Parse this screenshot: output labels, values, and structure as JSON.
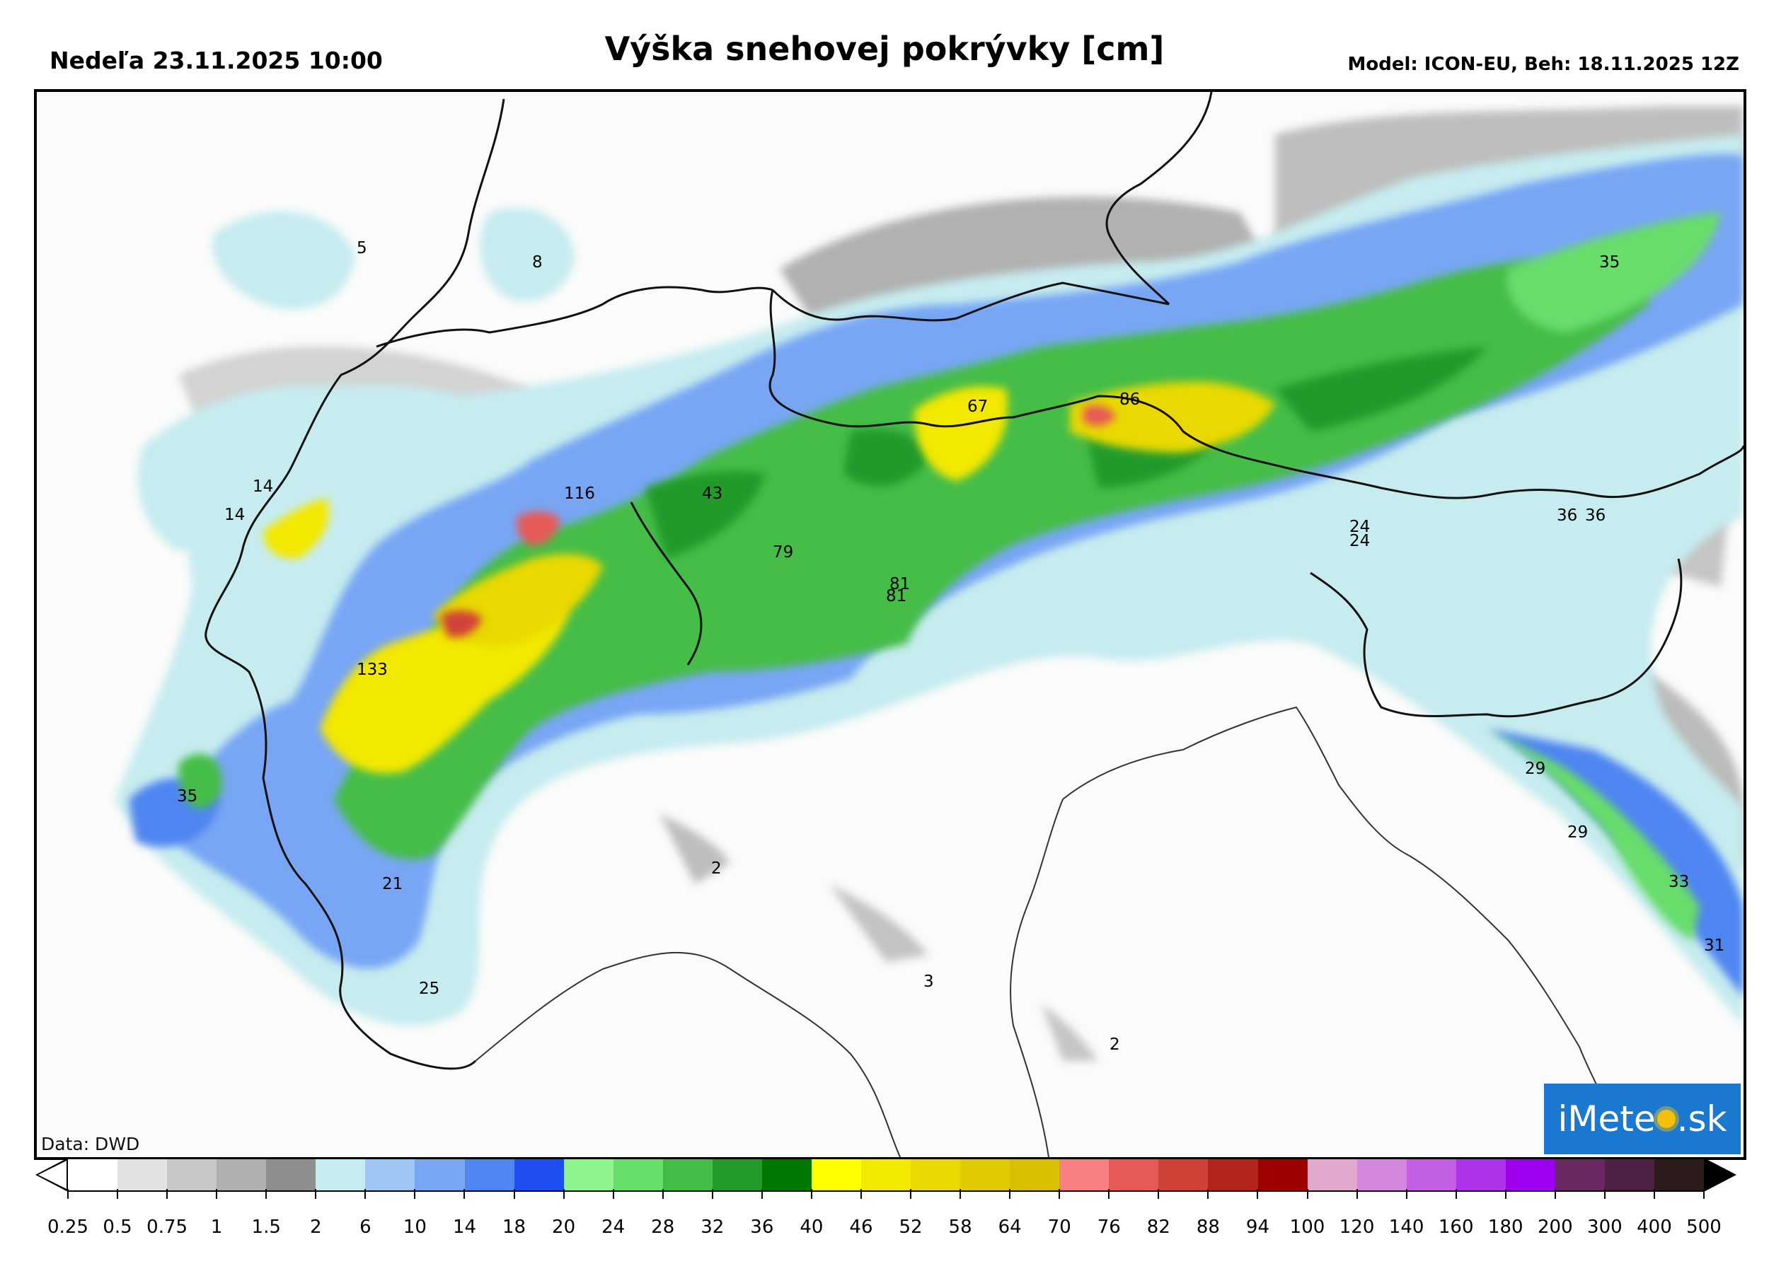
{
  "header": {
    "left": "Nedeľa 23.11.2025 10:00",
    "title": "Výška snehovej pokrývky [cm]",
    "right": "Model: ICON-EU, Beh: 18.11.2025 12Z"
  },
  "map": {
    "credit": "Data: DWD",
    "logo": {
      "text_before": "iMete",
      "text_after": ".sk"
    },
    "value_labels": [
      "5",
      "8",
      "14",
      "14",
      "116",
      "43",
      "67",
      "86",
      "35",
      "133",
      "79",
      "81",
      "81",
      "24",
      "24",
      "36",
      "36",
      "35",
      "29",
      "29",
      "33",
      "31",
      "21",
      "25",
      "2",
      "3",
      "2"
    ]
  },
  "legend": {
    "ticks": [
      "0.25",
      "0.5",
      "0.75",
      "1",
      "1.5",
      "2",
      "6",
      "10",
      "14",
      "18",
      "20",
      "24",
      "28",
      "32",
      "36",
      "40",
      "46",
      "52",
      "58",
      "64",
      "70",
      "76",
      "82",
      "88",
      "94",
      "100",
      "120",
      "140",
      "160",
      "180",
      "200",
      "300",
      "400",
      "500"
    ],
    "colors": [
      "#ffffff",
      "#e2e2e2",
      "#c8c8c8",
      "#b0b0b0",
      "#8e8e8e",
      "#c6ecef",
      "#9fc6f2",
      "#78a6f4",
      "#4f85f1",
      "#1f4ff2",
      "#8ef58e",
      "#67dd6a",
      "#44bd47",
      "#239a2a",
      "#007800",
      "#ffff00",
      "#f3e800",
      "#e9d900",
      "#dfcb00",
      "#d8bf00",
      "#f78080",
      "#e65a56",
      "#d04238",
      "#b3241c",
      "#9e0000",
      "#e2a9cf",
      "#d487dc",
      "#c35fe3",
      "#b033ec",
      "#9d00ef",
      "#6a2963",
      "#4e2044",
      "#2b1b1b"
    ]
  }
}
